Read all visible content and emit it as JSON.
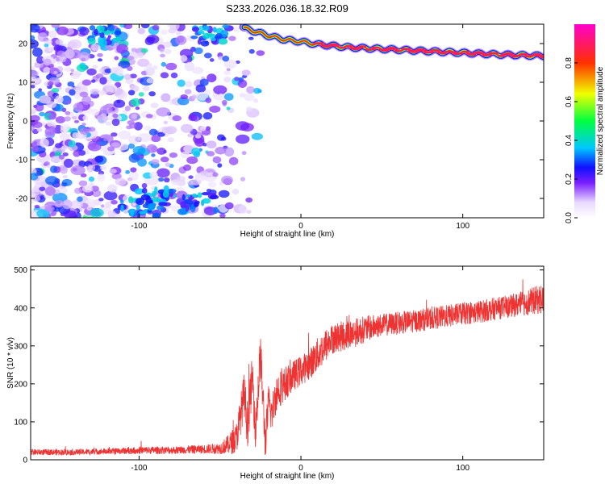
{
  "figure_title": "S233.2026.036.18.32.R09",
  "chart_data": [
    {
      "type": "heatmap",
      "title": "S233.2026.036.18.32.R09",
      "xlabel": "Height of straight line (km)",
      "ylabel": "Frequency (Hz)",
      "xlim": [
        -167,
        150
      ],
      "ylim": [
        -25,
        25
      ],
      "xticks": [
        -100,
        0,
        100
      ],
      "xtick_labels": [
        "-100",
        "0",
        "100"
      ],
      "yticks": [
        -20,
        -10,
        0,
        10,
        20
      ],
      "ytick_labels": [
        "-20",
        "-10",
        "0",
        "10",
        "20"
      ],
      "colorbar": {
        "label": "Normalized spectral amplitude",
        "range": [
          0,
          1
        ],
        "ticks": [
          0,
          0.2,
          0.4,
          0.6,
          0.8
        ],
        "tick_labels": [
          "0.0",
          "0.2",
          "0.4",
          "0.6",
          "0.8"
        ]
      },
      "signal_track": {
        "description": "high-amplitude tone",
        "x": [
          -35,
          -20,
          -10,
          0,
          10,
          30,
          60,
          90,
          120,
          150
        ],
        "frequency": [
          24,
          22,
          21,
          20.5,
          19.8,
          19,
          18.4,
          17.8,
          17.2,
          16.8
        ],
        "amplitude": [
          0.8,
          0.75,
          0.7,
          0.75,
          0.95,
          0.95,
          0.95,
          0.95,
          0.95,
          0.95
        ]
      },
      "noise_region": {
        "x_range": [
          -167,
          -25
        ],
        "amplitude_range": [
          0.05,
          0.5
        ]
      }
    },
    {
      "type": "line",
      "xlabel": "Height of straight line (km)",
      "ylabel": "SNR (10 * v/v)",
      "xlim": [
        -167,
        150
      ],
      "ylim": [
        0,
        510
      ],
      "xticks": [
        -100,
        0,
        100
      ],
      "xtick_labels": [
        "-100",
        "0",
        "100"
      ],
      "yticks": [
        0,
        100,
        200,
        300,
        400,
        500
      ],
      "ytick_labels": [
        "0",
        "100",
        "200",
        "300",
        "400",
        "500"
      ],
      "series": [
        {
          "name": "SNR",
          "color": "#ee3333",
          "x": [
            -167,
            -140,
            -120,
            -100,
            -80,
            -60,
            -50,
            -45,
            -40,
            -38,
            -35,
            -33,
            -30,
            -28,
            -25,
            -22,
            -20,
            -18,
            -15,
            -10,
            -5,
            0,
            5,
            10,
            15,
            20,
            25,
            30,
            40,
            50,
            60,
            70,
            80,
            90,
            100,
            110,
            120,
            130,
            140,
            150
          ],
          "values": [
            20,
            20,
            22,
            25,
            25,
            28,
            30,
            40,
            55,
            100,
            175,
            90,
            220,
            80,
            280,
            45,
            150,
            120,
            180,
            200,
            220,
            235,
            250,
            275,
            300,
            320,
            325,
            330,
            345,
            355,
            360,
            365,
            372,
            378,
            385,
            390,
            398,
            405,
            415,
            425
          ],
          "noise_amplitude": [
            8,
            8,
            8,
            10,
            10,
            12,
            15,
            25,
            40,
            50,
            60,
            60,
            60,
            60,
            60,
            50,
            50,
            50,
            50,
            45,
            40,
            40,
            40,
            45,
            45,
            40,
            40,
            40,
            35,
            30,
            30,
            30,
            30,
            30,
            30,
            30,
            30,
            30,
            35,
            40
          ]
        }
      ]
    }
  ]
}
